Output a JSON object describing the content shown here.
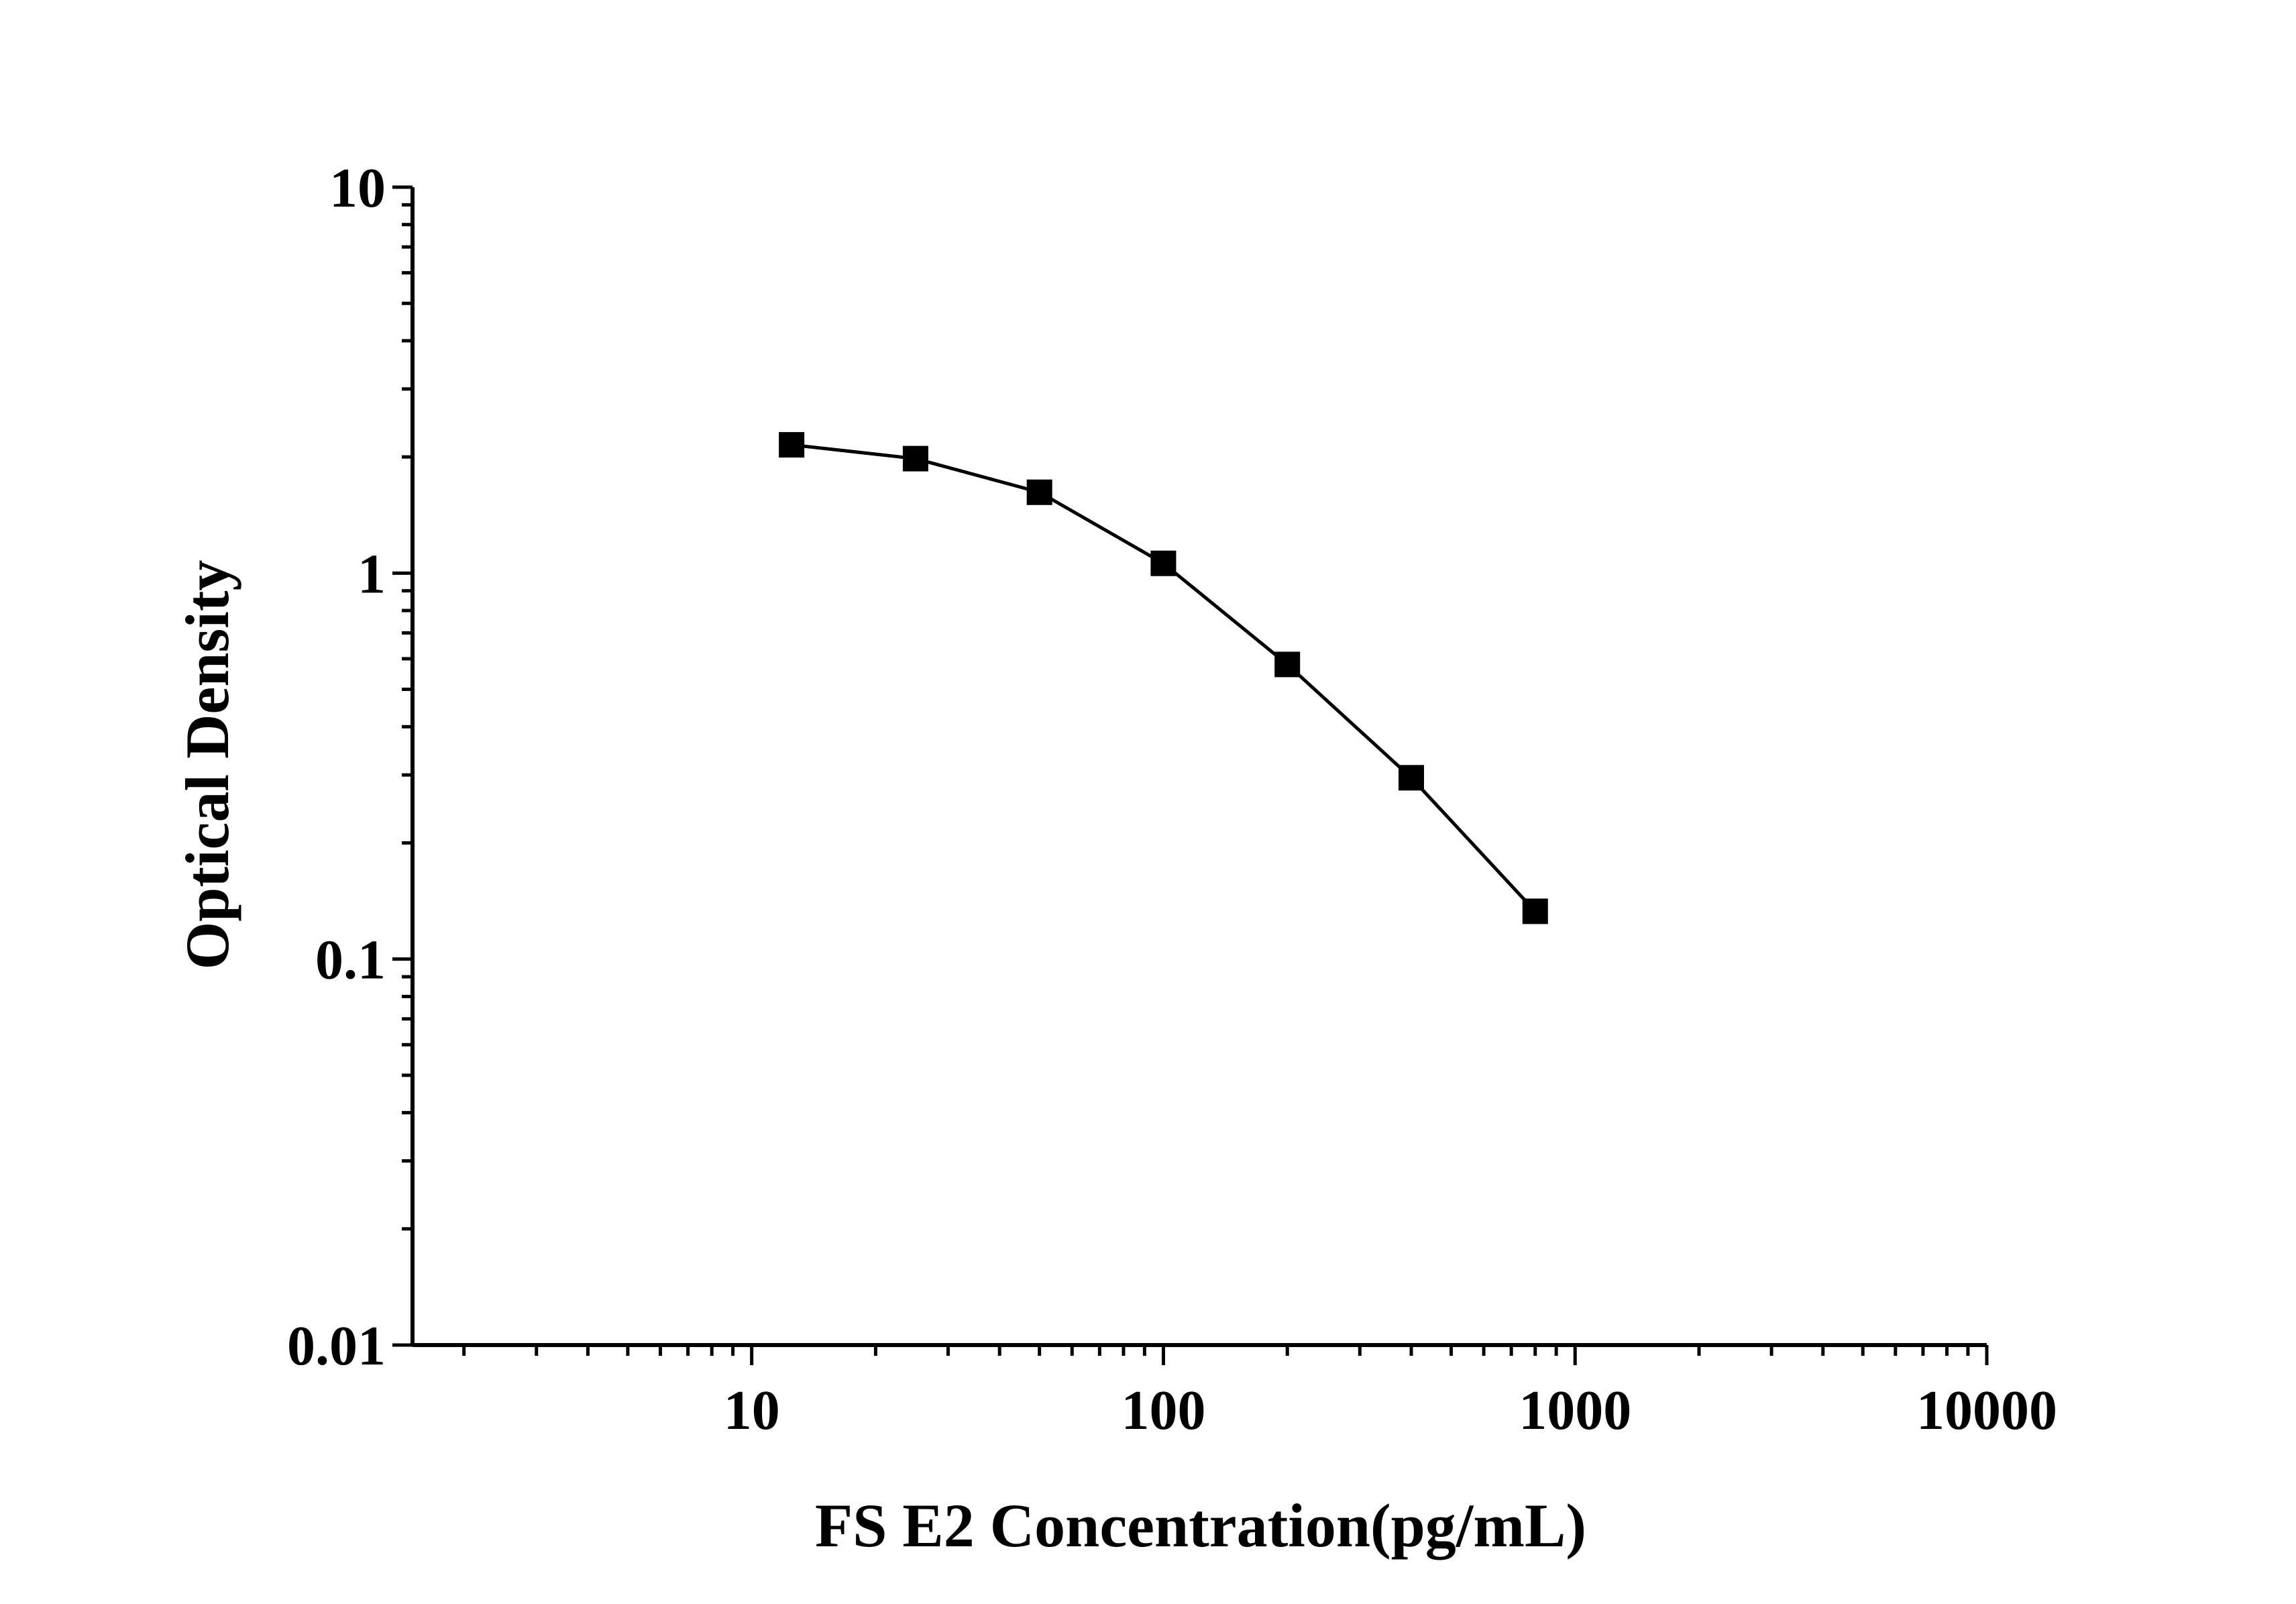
{
  "chart_data": {
    "type": "line",
    "xlabel": "FS E2 Concentration(pg/mL)",
    "ylabel": "Optical Density",
    "x_scale": "log",
    "y_scale": "log",
    "xlim": [
      1.5,
      10000
    ],
    "ylim": [
      0.01,
      10
    ],
    "x_ticks": [
      "10",
      "100",
      "1000",
      "10000"
    ],
    "y_ticks": [
      "0.01",
      "0.1",
      "1",
      "10"
    ],
    "grid": false,
    "marker": "square",
    "series_color": "#000000",
    "series": [
      {
        "x": [
          12.5,
          25,
          50,
          100,
          200,
          400,
          800
        ],
        "y": [
          2.15,
          1.98,
          1.62,
          1.06,
          0.58,
          0.295,
          0.133
        ]
      }
    ]
  }
}
